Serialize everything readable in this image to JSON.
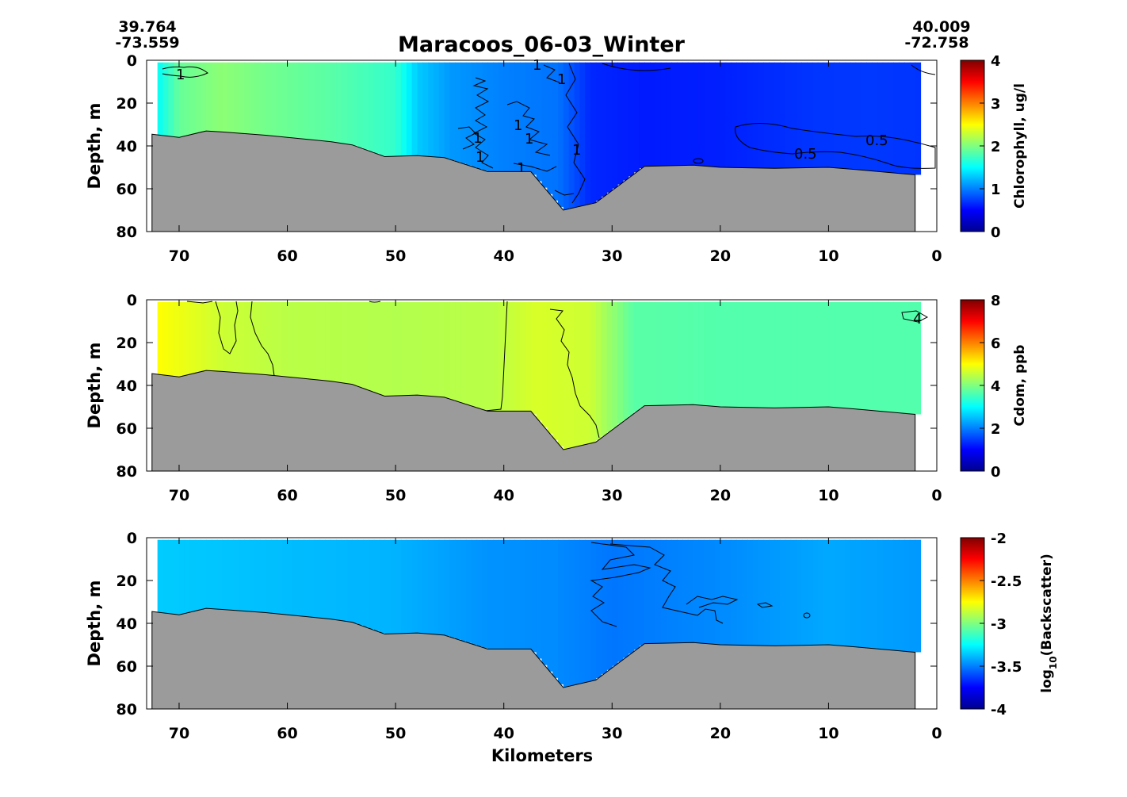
{
  "figure": {
    "title": "Maracoos_06-03_Winter",
    "start_lat": "39.764",
    "start_lon": "-73.559",
    "end_lat": "40.009",
    "end_lon": "-72.758",
    "xlabel": "Kilometers"
  },
  "colors": {
    "bathymetry": "#9b9b9b",
    "jet_stops": [
      "#00008f",
      "#0000ff",
      "#0080ff",
      "#00ffff",
      "#80ff80",
      "#ffff00",
      "#ff8000",
      "#ff0000",
      "#800000"
    ]
  },
  "chart_data": [
    {
      "type": "heatmap",
      "variable": "Chlorophyll",
      "ylabel": "Depth, m",
      "colorbar_label": "Chlorophyll, ug/l",
      "xlim": [
        73,
        0
      ],
      "ylim": [
        80,
        0
      ],
      "x_ticks": [
        "70",
        "60",
        "50",
        "40",
        "30",
        "20",
        "10",
        "0"
      ],
      "y_ticks": [
        "0",
        "20",
        "40",
        "60",
        "80"
      ],
      "clim": [
        0,
        4
      ],
      "colorbar_ticks": [
        "0",
        "1",
        "2",
        "3",
        "4"
      ],
      "contour_levels": [
        "0.5",
        "1"
      ],
      "column_values": [
        {
          "km": 72,
          "value": 1.5
        },
        {
          "km": 70,
          "value": 1.9
        },
        {
          "km": 66,
          "value": 2.05
        },
        {
          "km": 62,
          "value": 1.95
        },
        {
          "km": 56,
          "value": 1.85
        },
        {
          "km": 50,
          "value": 1.7
        },
        {
          "km": 48,
          "value": 1.3
        },
        {
          "km": 45,
          "value": 1.1
        },
        {
          "km": 40,
          "value": 1.0
        },
        {
          "km": 35,
          "value": 0.95
        },
        {
          "km": 32,
          "value": 0.65
        },
        {
          "km": 27,
          "value": 0.6
        },
        {
          "km": 20,
          "value": 0.62
        },
        {
          "km": 12,
          "value": 0.7
        },
        {
          "km": 6,
          "value": 0.72
        },
        {
          "km": 2,
          "value": 0.7
        }
      ]
    },
    {
      "type": "heatmap",
      "variable": "Cdom",
      "ylabel": "Depth, m",
      "colorbar_label": "Cdom, ppb",
      "xlim": [
        73,
        0
      ],
      "ylim": [
        80,
        0
      ],
      "x_ticks": [
        "70",
        "60",
        "50",
        "40",
        "30",
        "20",
        "10",
        "0"
      ],
      "y_ticks": [
        "0",
        "20",
        "40",
        "60",
        "80"
      ],
      "clim": [
        0,
        8
      ],
      "colorbar_ticks": [
        "0",
        "2",
        "4",
        "6",
        "8"
      ],
      "contour_levels": [
        "4"
      ],
      "column_values": [
        {
          "km": 72,
          "value": 5.0
        },
        {
          "km": 66,
          "value": 4.6
        },
        {
          "km": 60,
          "value": 4.45
        },
        {
          "km": 50,
          "value": 4.4
        },
        {
          "km": 41,
          "value": 4.45
        },
        {
          "km": 37,
          "value": 4.7
        },
        {
          "km": 32,
          "value": 4.6
        },
        {
          "km": 28,
          "value": 3.7
        },
        {
          "km": 20,
          "value": 3.65
        },
        {
          "km": 10,
          "value": 3.65
        },
        {
          "km": 2,
          "value": 3.65
        }
      ]
    },
    {
      "type": "heatmap",
      "variable": "Backscatter",
      "ylabel": "Depth, m",
      "colorbar_label": "log10(Backscatter)",
      "xlim": [
        73,
        0
      ],
      "ylim": [
        80,
        0
      ],
      "x_ticks": [
        "70",
        "60",
        "50",
        "40",
        "30",
        "20",
        "10",
        "0"
      ],
      "y_ticks": [
        "0",
        "20",
        "40",
        "60",
        "80"
      ],
      "clim": [
        -4,
        -2
      ],
      "colorbar_ticks": [
        "-4",
        "-3.5",
        "-3",
        "-2.5",
        "-2"
      ],
      "contour_levels": [
        "-3.5"
      ],
      "column_values": [
        {
          "km": 72,
          "value": -3.35
        },
        {
          "km": 60,
          "value": -3.38
        },
        {
          "km": 50,
          "value": -3.4
        },
        {
          "km": 42,
          "value": -3.46
        },
        {
          "km": 35,
          "value": -3.48
        },
        {
          "km": 30,
          "value": -3.52
        },
        {
          "km": 20,
          "value": -3.48
        },
        {
          "km": 10,
          "value": -3.42
        },
        {
          "km": 2,
          "value": -3.45
        }
      ]
    }
  ],
  "bathymetry": [
    {
      "km": 72.5,
      "depth": 34.5
    },
    {
      "km": 70,
      "depth": 36
    },
    {
      "km": 67.5,
      "depth": 33
    },
    {
      "km": 66,
      "depth": 33.5
    },
    {
      "km": 62,
      "depth": 35
    },
    {
      "km": 56,
      "depth": 38
    },
    {
      "km": 54,
      "depth": 39.5
    },
    {
      "km": 51,
      "depth": 45
    },
    {
      "km": 48,
      "depth": 44.5
    },
    {
      "km": 45.5,
      "depth": 45.5
    },
    {
      "km": 41.5,
      "depth": 52
    },
    {
      "km": 37.5,
      "depth": 52
    },
    {
      "km": 34.5,
      "depth": 70
    },
    {
      "km": 31.5,
      "depth": 66.5
    },
    {
      "km": 27,
      "depth": 49.5
    },
    {
      "km": 22.5,
      "depth": 49
    },
    {
      "km": 20,
      "depth": 50
    },
    {
      "km": 15,
      "depth": 50.5
    },
    {
      "km": 10,
      "depth": 50
    },
    {
      "km": 7.5,
      "depth": 51
    },
    {
      "km": 2,
      "depth": 53.5
    }
  ]
}
